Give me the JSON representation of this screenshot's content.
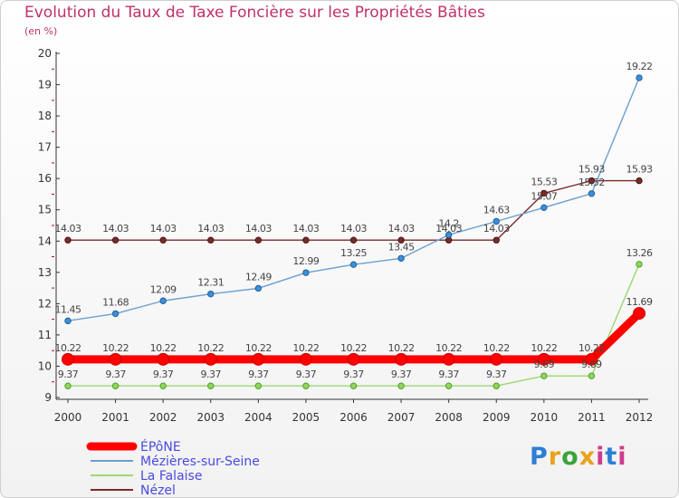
{
  "header": {
    "title": "Evolution du Taux de Taxe Foncière sur les Propriétés Bâties",
    "subtitle": "(en %)"
  },
  "logo": {
    "text": "Proxiti",
    "colors": [
      "#2b7fd4",
      "#e8a21b",
      "#3aa43a",
      "#e8a21b",
      "#d23a8c",
      "#2b7fd4",
      "#d23a8c"
    ]
  },
  "chart_data": {
    "type": "line",
    "title": "Evolution du Taux de Taxe Foncière sur les Propriétés Bâties",
    "ylabel": "(en %)",
    "xlabel": "",
    "ylim": [
      9,
      20
    ],
    "yticks": [
      9,
      10,
      11,
      12,
      13,
      14,
      15,
      16,
      17,
      18,
      19,
      20
    ],
    "grid": false,
    "legend_position": "bottom-left",
    "x": [
      "2000",
      "2001",
      "2002",
      "2003",
      "2004",
      "2005",
      "2006",
      "2007",
      "2008",
      "2009",
      "2010",
      "2011",
      "2012"
    ],
    "series": [
      {
        "name": "ÉPôNE",
        "color": "#ff0000",
        "values": [
          10.22,
          10.22,
          10.22,
          10.22,
          10.22,
          10.22,
          10.22,
          10.22,
          10.22,
          10.22,
          10.22,
          10.22,
          11.69
        ],
        "labels": [
          "10.22",
          "10.22",
          "10.22",
          "10.22",
          "10.22",
          "10.22",
          "10.22",
          "10.22",
          "10.22",
          "10.22",
          "10.22",
          "10.22",
          "11.69"
        ]
      },
      {
        "name": "Mézières-sur-Seine",
        "color": "#6aa0d0",
        "values": [
          11.45,
          11.68,
          12.09,
          12.31,
          12.49,
          12.99,
          13.25,
          13.45,
          14.2,
          14.63,
          15.07,
          15.52,
          19.22
        ],
        "labels": [
          "11.45",
          "11.68",
          "12.09",
          "12.31",
          "12.49",
          "12.99",
          "13.25",
          "13.45",
          "14.2",
          "14.63",
          "15.07",
          "15.52",
          "19.22"
        ]
      },
      {
        "name": "La Falaise",
        "color": "#9cd870",
        "values": [
          9.37,
          9.37,
          9.37,
          9.37,
          9.37,
          9.37,
          9.37,
          9.37,
          9.37,
          9.37,
          9.69,
          9.69,
          13.26
        ],
        "labels": [
          "9.37",
          "9.37",
          "9.37",
          "9.37",
          "9.37",
          "9.37",
          "9.37",
          "9.37",
          "9.37",
          "9.37",
          "9.69",
          "9.69",
          "13.26"
        ]
      },
      {
        "name": "Nézel",
        "color": "#7a2a2a",
        "values": [
          14.03,
          14.03,
          14.03,
          14.03,
          14.03,
          14.03,
          14.03,
          14.03,
          14.03,
          14.03,
          15.53,
          15.93,
          15.93
        ],
        "labels": [
          "14.03",
          "14.03",
          "14.03",
          "14.03",
          "14.03",
          "14.03",
          "14.03",
          "14.03",
          "14.03",
          "14.03",
          "15.53",
          "15.93",
          "15.93"
        ]
      }
    ]
  }
}
